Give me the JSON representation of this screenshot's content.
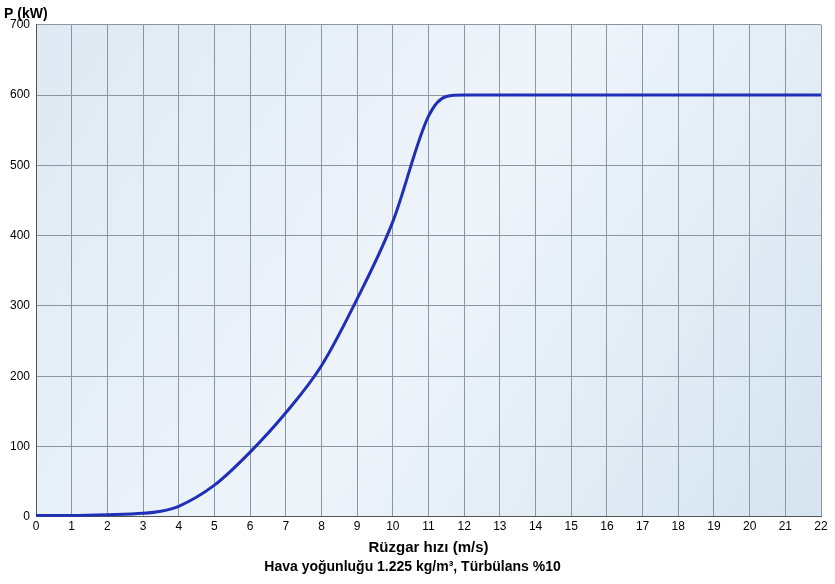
{
  "chart_data": {
    "type": "line",
    "y_label": "P (kW)",
    "x_label": "Rüzgar hızı (m/s)",
    "subtitle": "Hava yoğunluğu 1.225 kg/m³, Türbülans %10",
    "x": [
      0,
      1,
      2,
      3,
      3.5,
      4,
      5,
      6,
      7,
      8,
      9,
      10,
      11,
      11.5,
      12,
      13,
      14,
      15,
      16,
      17,
      18,
      19,
      20,
      21,
      22
    ],
    "values": [
      2,
      2,
      3,
      5,
      8,
      15,
      45,
      92,
      148,
      215,
      310,
      420,
      570,
      598,
      600,
      600,
      600,
      600,
      600,
      600,
      600,
      600,
      600,
      600,
      600
    ],
    "color": "#1f2fb8",
    "xlim": [
      0,
      22
    ],
    "xticks": [
      0,
      1,
      2,
      3,
      4,
      5,
      6,
      7,
      8,
      9,
      10,
      11,
      12,
      13,
      14,
      15,
      16,
      17,
      18,
      19,
      20,
      21,
      22
    ],
    "ylim": [
      0,
      700
    ],
    "yticks": [
      0,
      100,
      200,
      300,
      400,
      500,
      600,
      700
    ],
    "grid": true
  }
}
